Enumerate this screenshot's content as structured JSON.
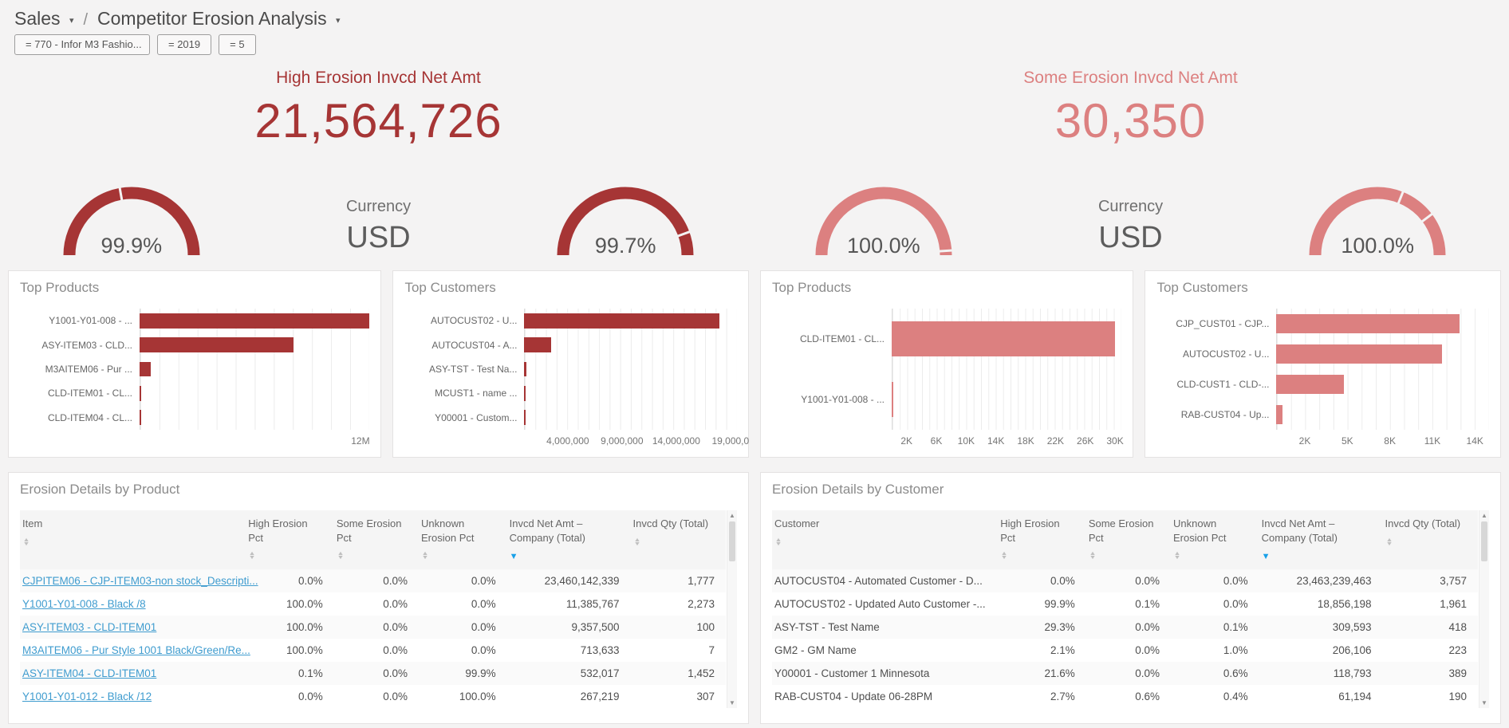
{
  "icons": {
    "chevron_down": "▾",
    "sort_asc": "▲",
    "sort_desc": "▼",
    "scroll_up": "▲",
    "scroll_down": "▼"
  },
  "breadcrumb": {
    "section": "Sales",
    "separator": "/",
    "page": "Competitor Erosion Analysis"
  },
  "filters": [
    {
      "label": "= 770 - Infor M3 Fashio..."
    },
    {
      "label": "= 2019"
    },
    {
      "label": "= 5"
    }
  ],
  "panels": [
    {
      "id": "high",
      "color": "#a63535",
      "kpi_title": "High Erosion Invcd Net Amt",
      "kpi_value": "21,564,726",
      "currency_label": "Currency",
      "currency_value": "USD"
    },
    {
      "id": "some",
      "color": "#dc8080",
      "kpi_title": "Some Erosion Invcd Net Amt",
      "kpi_value": "30,350",
      "currency_label": "Currency",
      "currency_value": "USD"
    }
  ],
  "chart_data": [
    {
      "type": "gauge",
      "panel": "high",
      "label": "99.9%",
      "value_pct": 99.9,
      "notches": [
        80
      ]
    },
    {
      "type": "gauge",
      "panel": "high",
      "label": "99.7%",
      "value_pct": 99.7,
      "notches": [
        160
      ]
    },
    {
      "type": "gauge",
      "panel": "some",
      "label": "100.0%",
      "value_pct": 100.0,
      "notches": [
        176
      ]
    },
    {
      "type": "gauge",
      "panel": "some",
      "label": "100.0%",
      "value_pct": 100.0,
      "notches": [
        112,
        143
      ]
    },
    {
      "type": "bar",
      "orientation": "horizontal",
      "title": "Top Products",
      "panel": "high",
      "categories": [
        "Y1001-Y01-008 - ...",
        "ASY-ITEM03 - CLD...",
        "M3AITEM06 - Pur ...",
        "CLD-ITEM01 - CL...",
        "CLD-ITEM04 - CL..."
      ],
      "values": [
        12480000,
        8350000,
        620000,
        70000,
        60000
      ],
      "xmax": 12500000,
      "grid_divisions": 12,
      "ticks": [
        {
          "label": "12M",
          "value": 12000000
        }
      ]
    },
    {
      "type": "bar",
      "orientation": "horizontal",
      "title": "Top Customers",
      "panel": "high",
      "categories": [
        "AUTOCUST02 - U...",
        "AUTOCUST04 - A...",
        "ASY-TST - Test Na...",
        "MCUST1 - name ...",
        "Y00001 - Custom..."
      ],
      "values": [
        18000000,
        2450000,
        150000,
        120000,
        110000
      ],
      "xmax": 19600000,
      "grid_divisions": 20,
      "ticks": [
        {
          "label": "4,000,000",
          "value": 4000000
        },
        {
          "label": "9,000,000",
          "value": 9000000
        },
        {
          "label": "14,000,000",
          "value": 14000000
        },
        {
          "label": "19,000,0",
          "value": 19000000
        }
      ]
    },
    {
      "type": "bar",
      "orientation": "horizontal",
      "title": "Top Products",
      "panel": "some",
      "categories": [
        "CLD-ITEM01 - CL...",
        "Y1001-Y01-008 - ..."
      ],
      "values": [
        30000,
        220
      ],
      "xmax": 30900,
      "grid_divisions": 31,
      "ticks": [
        {
          "label": "2K",
          "value": 2000
        },
        {
          "label": "6K",
          "value": 6000
        },
        {
          "label": "10K",
          "value": 10000
        },
        {
          "label": "14K",
          "value": 14000
        },
        {
          "label": "18K",
          "value": 18000
        },
        {
          "label": "22K",
          "value": 22000
        },
        {
          "label": "26K",
          "value": 26000
        },
        {
          "label": "30K",
          "value": 30000
        }
      ]
    },
    {
      "type": "bar",
      "orientation": "horizontal",
      "title": "Top Customers",
      "panel": "some",
      "categories": [
        "CJP_CUST01 - CJP...",
        "AUTOCUST02 - U...",
        "CLD-CUST1 - CLD-...",
        "RAB-CUST04 - Up..."
      ],
      "values": [
        12900,
        11700,
        4740,
        430
      ],
      "xmax": 15000,
      "grid_divisions": 15,
      "ticks": [
        {
          "label": "2K",
          "value": 2000
        },
        {
          "label": "5K",
          "value": 5000
        },
        {
          "label": "8K",
          "value": 8000
        },
        {
          "label": "11K",
          "value": 11000
        },
        {
          "label": "14K",
          "value": 14000
        }
      ]
    }
  ],
  "tables": [
    {
      "title": "Erosion Details by Product",
      "item_links": true,
      "columns": [
        {
          "label": "Item",
          "sort": "none"
        },
        {
          "label": "High Erosion Pct",
          "sort": "none"
        },
        {
          "label": "Some Erosion Pct",
          "sort": "none"
        },
        {
          "label": "Unknown Erosion Pct",
          "sort": "none"
        },
        {
          "label": "Invcd Net Amt – Company (Total)",
          "sort": "desc"
        },
        {
          "label": "Invcd Qty (Total)",
          "sort": "none"
        }
      ],
      "rows": [
        [
          "CJPITEM06 - CJP-ITEM03-non stock_Descripti...",
          "0.0%",
          "0.0%",
          "0.0%",
          "23,460,142,339",
          "1,777"
        ],
        [
          "Y1001-Y01-008 - Black /8",
          "100.0%",
          "0.0%",
          "0.0%",
          "11,385,767",
          "2,273"
        ],
        [
          "ASY-ITEM03 - CLD-ITEM01",
          "100.0%",
          "0.0%",
          "0.0%",
          "9,357,500",
          "100"
        ],
        [
          "M3AITEM06 - Pur Style 1001 Black/Green/Re...",
          "100.0%",
          "0.0%",
          "0.0%",
          "713,633",
          "7"
        ],
        [
          "ASY-ITEM04 - CLD-ITEM01",
          "0.1%",
          "0.0%",
          "99.9%",
          "532,017",
          "1,452"
        ],
        [
          "Y1001-Y01-012 - Black /12",
          "0.0%",
          "0.0%",
          "100.0%",
          "267,219",
          "307"
        ]
      ]
    },
    {
      "title": "Erosion Details by Customer",
      "item_links": false,
      "columns": [
        {
          "label": "Customer",
          "sort": "none"
        },
        {
          "label": "High Erosion Pct",
          "sort": "none"
        },
        {
          "label": "Some Erosion Pct",
          "sort": "none"
        },
        {
          "label": "Unknown Erosion Pct",
          "sort": "none"
        },
        {
          "label": "Invcd Net Amt – Company (Total)",
          "sort": "desc"
        },
        {
          "label": "Invcd Qty (Total)",
          "sort": "none"
        }
      ],
      "rows": [
        [
          "AUTOCUST04 - Automated Customer - D...",
          "0.0%",
          "0.0%",
          "0.0%",
          "23,463,239,463",
          "3,757"
        ],
        [
          "AUTOCUST02 - Updated Auto Customer -...",
          "99.9%",
          "0.1%",
          "0.0%",
          "18,856,198",
          "1,961"
        ],
        [
          "ASY-TST - Test Name",
          "29.3%",
          "0.0%",
          "0.1%",
          "309,593",
          "418"
        ],
        [
          "GM2 - GM Name",
          "2.1%",
          "0.0%",
          "1.0%",
          "206,106",
          "223"
        ],
        [
          "Y00001 - Customer 1 Minnesota",
          "21.6%",
          "0.0%",
          "0.6%",
          "118,793",
          "389"
        ],
        [
          "RAB-CUST04 - Update 06-28PM",
          "2.7%",
          "0.6%",
          "0.4%",
          "61,194",
          "190"
        ]
      ]
    }
  ]
}
